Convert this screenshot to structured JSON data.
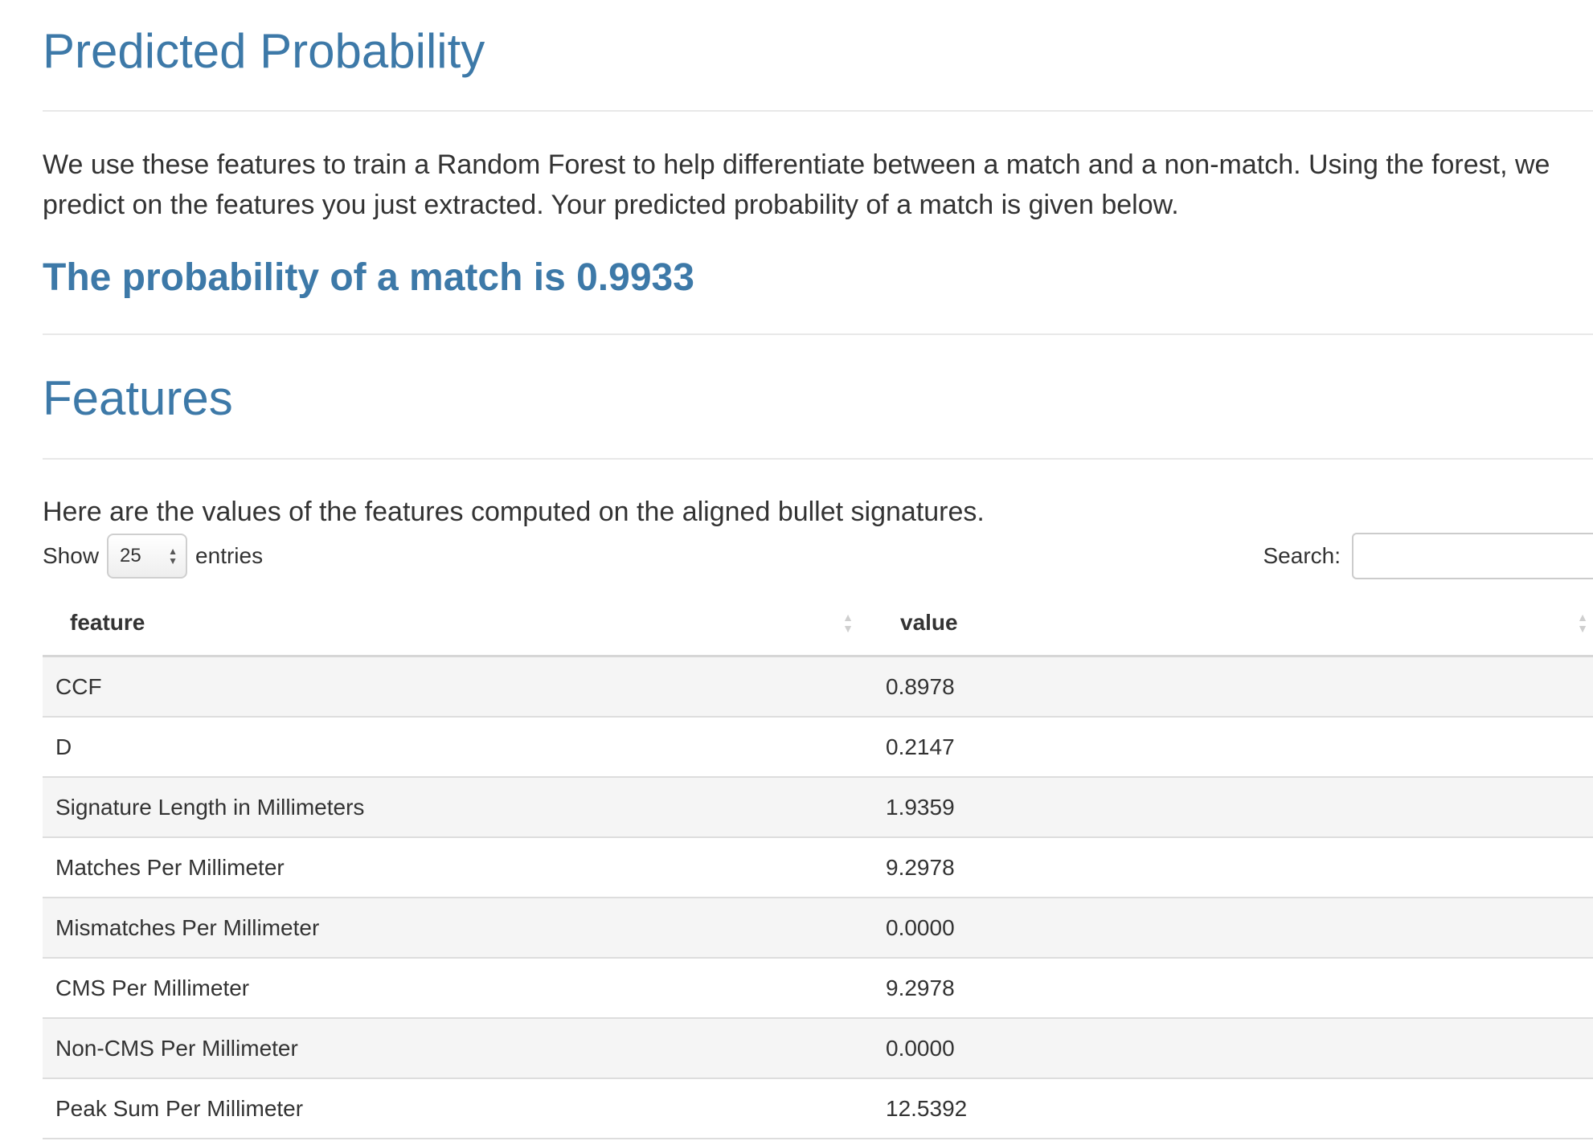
{
  "header": {
    "title": "Predicted Probability"
  },
  "intro": {
    "text": "We use these features to train a Random Forest to help differentiate between a match and a non-match. Using the forest, we predict on the features you just extracted. Your predicted probability of a match is given below."
  },
  "result": {
    "text": "The probability of a match is 0.9933"
  },
  "features_section": {
    "title": "Features",
    "description": "Here are the values of the features computed on the aligned bullet signatures."
  },
  "controls": {
    "show_label": "Show",
    "page_size": "25",
    "entries_label": "entries",
    "search_label": "Search:",
    "search_value": ""
  },
  "table": {
    "headers": [
      "feature",
      "value"
    ],
    "rows": [
      {
        "feature": "CCF",
        "value": "0.8978"
      },
      {
        "feature": "D",
        "value": "0.2147"
      },
      {
        "feature": "Signature Length in Millimeters",
        "value": "1.9359"
      },
      {
        "feature": "Matches Per Millimeter",
        "value": "9.2978"
      },
      {
        "feature": "Mismatches Per Millimeter",
        "value": "0.0000"
      },
      {
        "feature": "CMS Per Millimeter",
        "value": "9.2978"
      },
      {
        "feature": "Non-CMS Per Millimeter",
        "value": "0.0000"
      },
      {
        "feature": "Peak Sum Per Millimeter",
        "value": "12.5392"
      }
    ]
  }
}
